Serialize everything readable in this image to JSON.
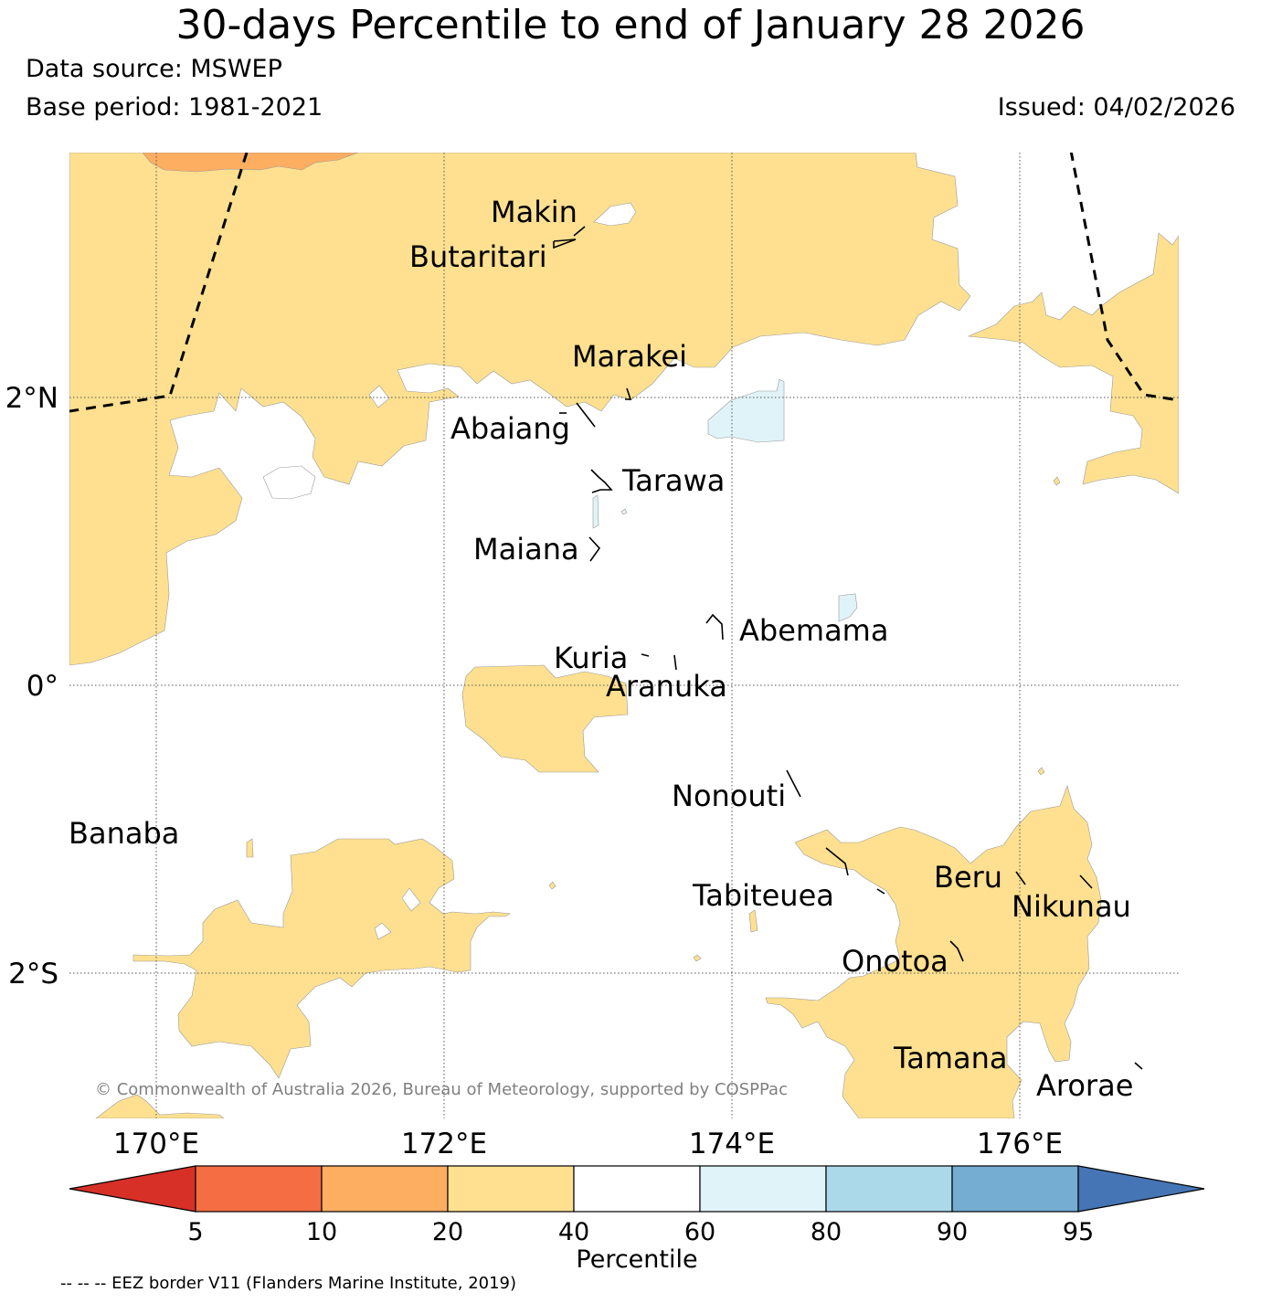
{
  "title": "30-days Percentile to end of January 28 2026",
  "data_source": "Data source: MSWEP",
  "base_period": "Base period: 1981-2021",
  "issued": "Issued: 04/02/2026",
  "copyright": "© Commonwealth of Australia 2026, Bureau of Meteorology, supported by COSPPac",
  "eez_note": "-- -- -- EEZ border V11 (Flanders Marine Institute, 2019)",
  "axes": {
    "lon_labels": [
      "170°E",
      "172°E",
      "174°E",
      "176°E"
    ],
    "lat_labels": [
      "2°N",
      "0°",
      "2°S"
    ]
  },
  "islands": {
    "makin": "Makin",
    "butaritari": "Butaritari",
    "marakei": "Marakei",
    "abaiang": "Abaiang",
    "tarawa": "Tarawa",
    "maiana": "Maiana",
    "abemama": "Abemama",
    "kuria": "Kuria",
    "aranuka": "Aranuka",
    "nonouti": "Nonouti",
    "banaba": "Banaba",
    "tabiteuea": "Tabiteuea",
    "beru": "Beru",
    "nikunau": "Nikunau",
    "onotoa": "Onotoa",
    "tamana": "Tamana",
    "arorae": "Arorae"
  },
  "colorbar": {
    "label": "Percentile",
    "ticks": [
      "5",
      "10",
      "20",
      "40",
      "60",
      "80",
      "90",
      "95"
    ],
    "colors": {
      "below_5": "#d73027",
      "5_10": "#f46d43",
      "10_20": "#fdae61",
      "20_40": "#fee090",
      "40_60": "#ffffff",
      "60_80": "#e0f3f8",
      "80_90": "#abd9e9",
      "90_95": "#74add1",
      "above_95": "#4575b4"
    }
  }
}
